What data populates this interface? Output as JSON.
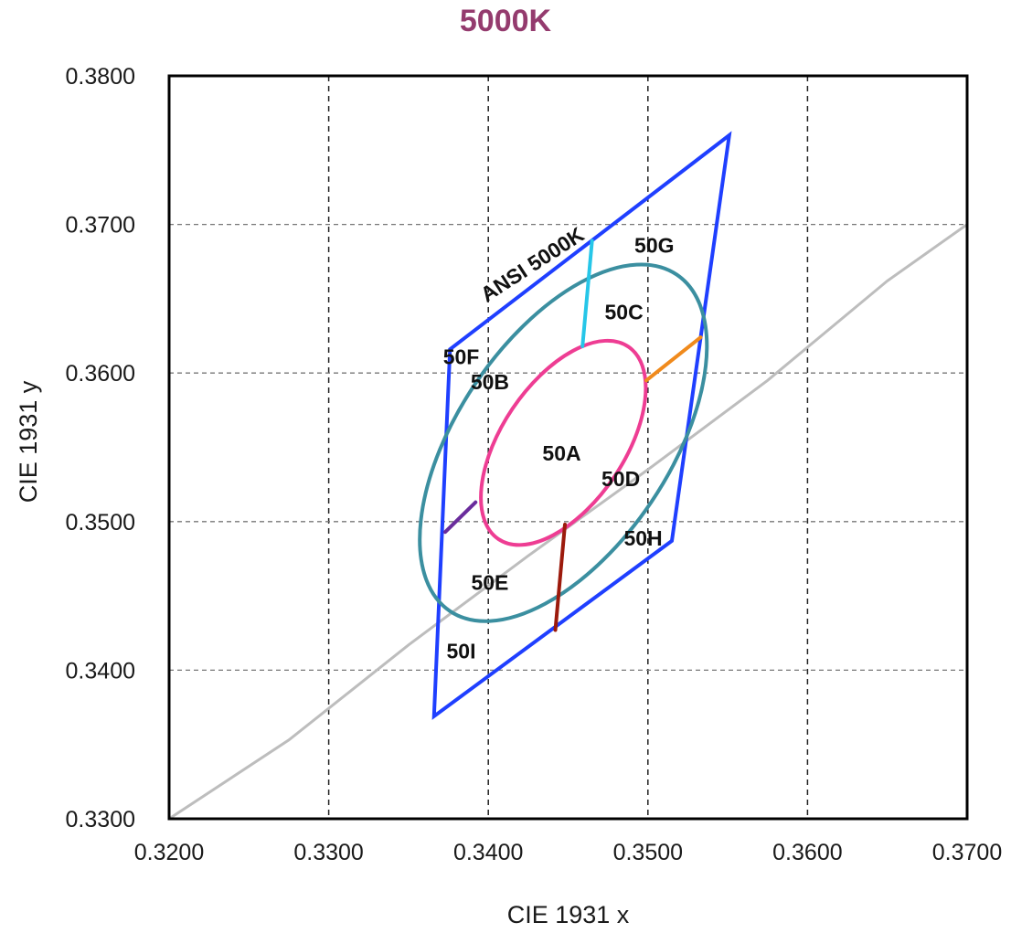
{
  "chart_data": {
    "type": "line",
    "title": "5000K",
    "xlabel": "CIE 1931 x",
    "ylabel": "CIE 1931 y",
    "xlim": [
      0.32,
      0.37
    ],
    "ylim": [
      0.33,
      0.38
    ],
    "x_ticks": [
      "0.3200",
      "0.3300",
      "0.3400",
      "0.3500",
      "0.3600",
      "0.3700"
    ],
    "y_ticks": [
      "0.3300",
      "0.3400",
      "0.3500",
      "0.3600",
      "0.3700",
      "0.3800"
    ],
    "grid": true,
    "colors": {
      "title": "#943b6e",
      "ansi_quad": "#1f3fff",
      "outer_ellipse": "#3b8fa0",
      "inner_ellipse": "#ee3d93",
      "planckian": "#bdbdbd",
      "divider_top": "#26c6e8",
      "divider_right": "#f08a1c",
      "divider_left": "#6a2c9c",
      "divider_bottom": "#9c1a0c"
    },
    "planckian_locus": [
      [
        0.32,
        0.33
      ],
      [
        0.3275,
        0.3353
      ],
      [
        0.335,
        0.3417
      ],
      [
        0.3425,
        0.3477
      ],
      [
        0.35,
        0.3535
      ],
      [
        0.3575,
        0.3595
      ],
      [
        0.365,
        0.3662
      ],
      [
        0.37,
        0.37
      ]
    ],
    "ansi_quadrangle": [
      [
        0.3376,
        0.3616
      ],
      [
        0.3551,
        0.376
      ],
      [
        0.3515,
        0.3487
      ],
      [
        0.3366,
        0.3369
      ]
    ],
    "outer_ellipse": {
      "center": [
        0.3447,
        0.3553
      ],
      "points_hint": [
        [
          0.3506,
          0.3675
        ],
        [
          0.3534,
          0.3625
        ],
        [
          0.3375,
          0.353
        ],
        [
          0.3372,
          0.3443
        ],
        [
          0.3388,
          0.343
        ]
      ]
    },
    "inner_ellipse": {
      "center": [
        0.3447,
        0.3553
      ],
      "points_hint": [
        [
          0.3466,
          0.3619
        ],
        [
          0.3499,
          0.3595
        ],
        [
          0.3404,
          0.3479
        ],
        [
          0.3392,
          0.3513
        ]
      ]
    },
    "dividers": [
      {
        "name": "top",
        "points": [
          [
            0.3459,
            0.3618
          ],
          [
            0.3465,
            0.3689
          ]
        ]
      },
      {
        "name": "right",
        "points": [
          [
            0.3499,
            0.3595
          ],
          [
            0.3533,
            0.3624
          ]
        ]
      },
      {
        "name": "left",
        "points": [
          [
            0.3392,
            0.3513
          ],
          [
            0.3373,
            0.3493
          ]
        ]
      },
      {
        "name": "bottom",
        "points": [
          [
            0.3448,
            0.3498
          ],
          [
            0.3442,
            0.3427
          ]
        ]
      }
    ],
    "annotations": [
      {
        "text": "ANSI 5000K",
        "x": 0.343,
        "y": 0.3669,
        "rotate": -33
      },
      {
        "text": "50G",
        "x": 0.3504,
        "y": 0.3681
      },
      {
        "text": "50C",
        "x": 0.3485,
        "y": 0.3636
      },
      {
        "text": "50F",
        "x": 0.3383,
        "y": 0.3606
      },
      {
        "text": "50B",
        "x": 0.3401,
        "y": 0.3589
      },
      {
        "text": "50A",
        "x": 0.3446,
        "y": 0.3541
      },
      {
        "text": "50D",
        "x": 0.3483,
        "y": 0.3524
      },
      {
        "text": "50H",
        "x": 0.3497,
        "y": 0.3484
      },
      {
        "text": "50E",
        "x": 0.3401,
        "y": 0.3454
      },
      {
        "text": "50I",
        "x": 0.3383,
        "y": 0.3408
      }
    ]
  }
}
